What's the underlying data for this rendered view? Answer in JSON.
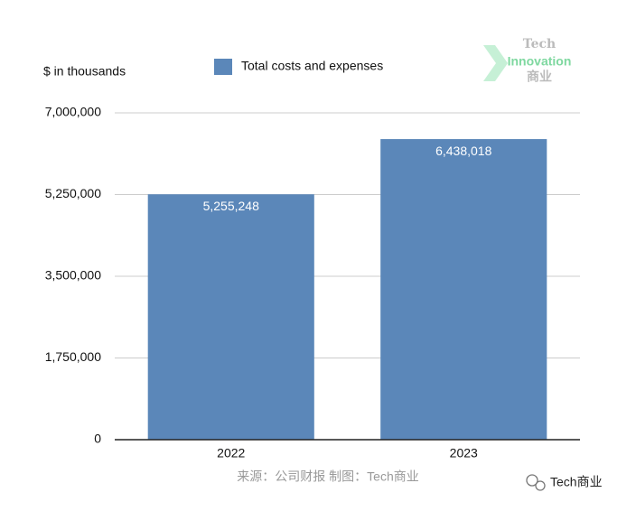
{
  "chart_data": {
    "type": "bar",
    "y_label": "$ in thousands",
    "categories": [
      "2022",
      "2023"
    ],
    "series": [
      {
        "name": "Total costs and expenses",
        "color": "#5b87b9",
        "values": [
          5255248,
          6438018
        ],
        "value_labels": [
          "5,255,248",
          "6,438,018"
        ]
      }
    ],
    "ylim": [
      0,
      7000000
    ],
    "yticks": [
      0,
      {
        "value": 1750000,
        "label": "1,750,000"
      },
      {
        "value": 3500000,
        "label": "3,500,000"
      },
      {
        "value": 5250000,
        "label": "5,250,000"
      },
      {
        "value": 7000000,
        "label": "7,000,000"
      }
    ],
    "grid": true,
    "legend": "top",
    "source": "来源：公司财报 制图：Tech商业",
    "watermark": {
      "title": "Tech",
      "subtitle": "Innovation",
      "name": "商业"
    },
    "footer_brand": "Tech商业"
  }
}
